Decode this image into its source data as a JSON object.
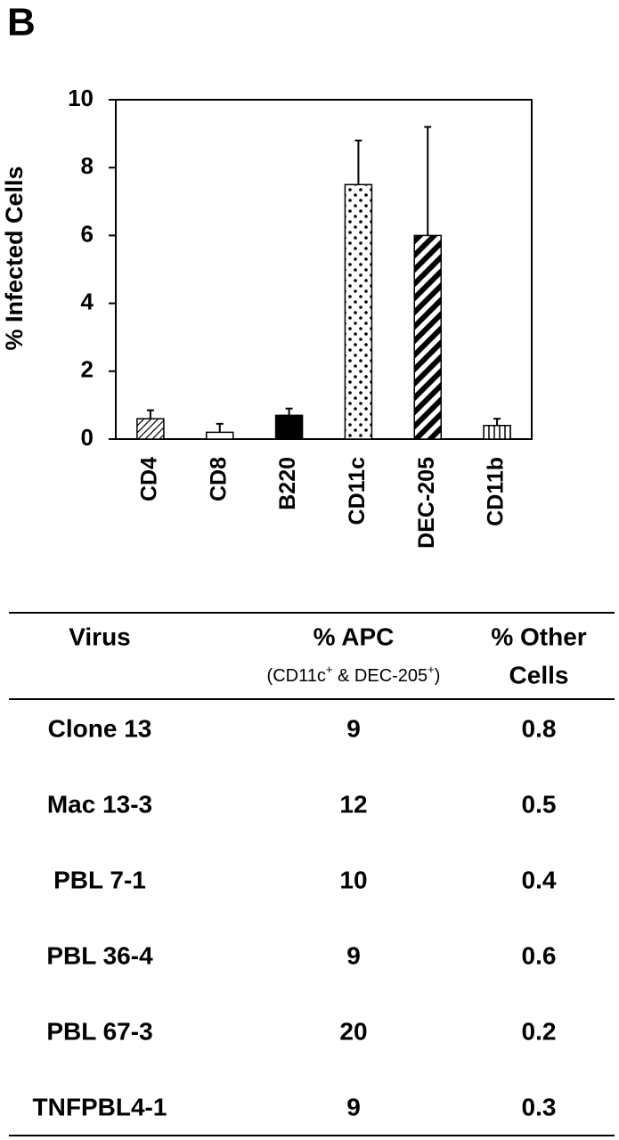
{
  "panel_label": "B",
  "chart_data": {
    "type": "bar",
    "y_label": "% Infected Cells",
    "categories": [
      "CD4",
      "CD8",
      "B220",
      "CD11c",
      "DEC-205",
      "CD11b"
    ],
    "values": [
      0.6,
      0.2,
      0.7,
      7.5,
      6.0,
      0.4
    ],
    "errors": [
      0.25,
      0.25,
      0.2,
      1.3,
      3.2,
      0.2
    ],
    "patterns": [
      "hatch",
      "open",
      "solid",
      "dots",
      "stripes",
      "vlines"
    ],
    "color": "#000000",
    "ylim": [
      0,
      10
    ],
    "yticks": [
      0,
      2,
      4,
      6,
      8,
      10
    ]
  },
  "table": {
    "header": {
      "virus": "Virus",
      "apc": "% APC",
      "apc_sub": [
        "(CD11c",
        "+",
        " & DEC-205",
        "+",
        ")"
      ],
      "other": [
        "% Other",
        "Cells"
      ]
    },
    "rows": [
      [
        "Clone 13",
        "9",
        "0.8"
      ],
      [
        "Mac 13-3",
        "12",
        "0.5"
      ],
      [
        "PBL 7-1",
        "10",
        "0.4"
      ],
      [
        "PBL 36-4",
        "9",
        "0.6"
      ],
      [
        "PBL 67-3",
        "20",
        "0.2"
      ],
      [
        "TNFPBL4-1",
        "9",
        "0.3"
      ]
    ]
  }
}
